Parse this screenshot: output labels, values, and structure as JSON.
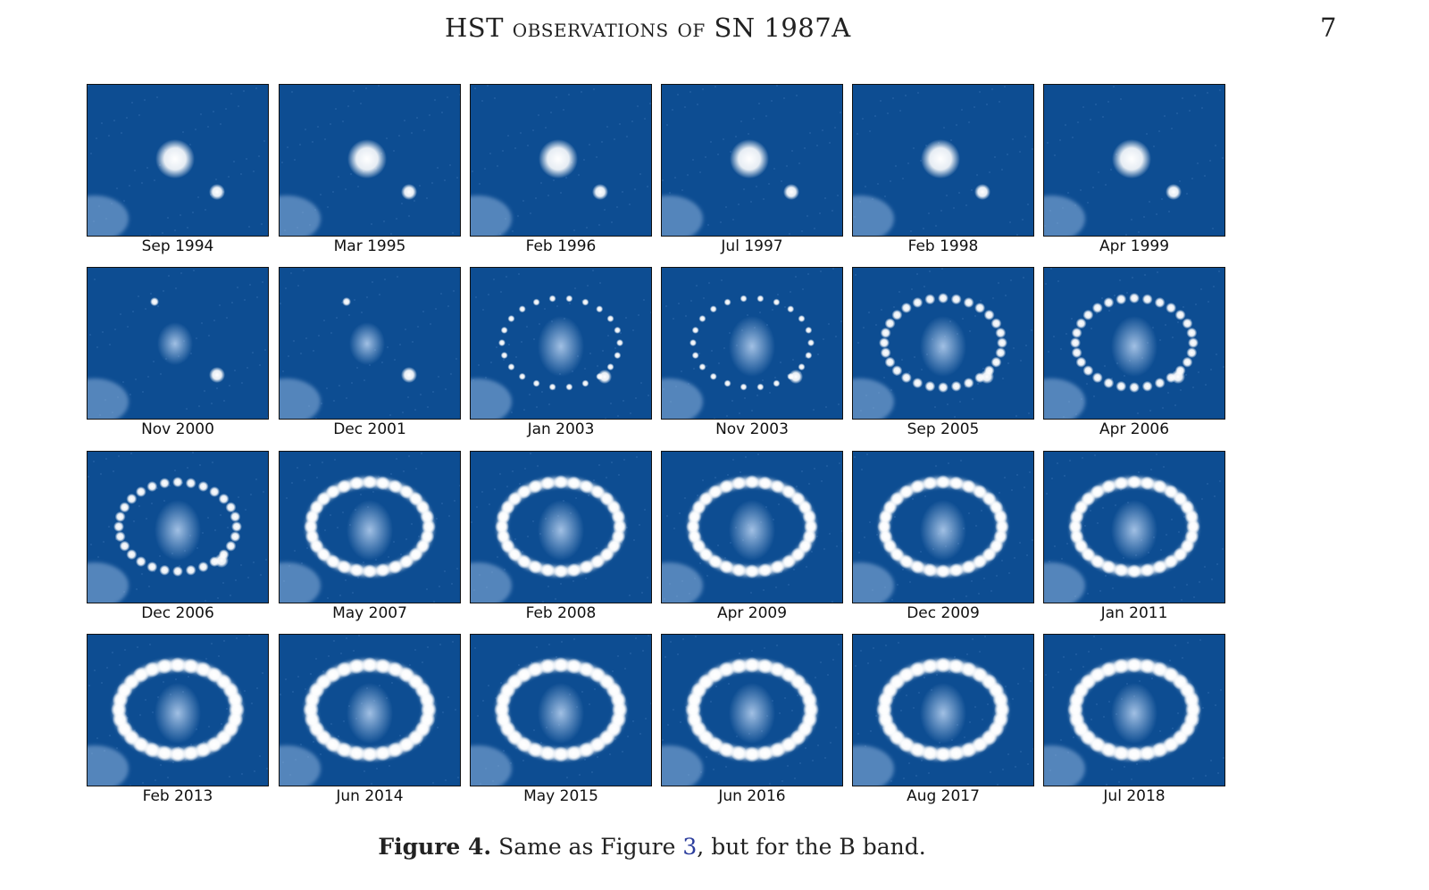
{
  "header": {
    "running_title": "HST observations of SN 1987A",
    "page_number": "7"
  },
  "colors": {
    "image_background": "#0d4d92",
    "image_glow": "#ffffff",
    "reference_link": "#2a3c9c"
  },
  "panels": [
    {
      "label": "Sep 1994",
      "stage": 0
    },
    {
      "label": "Mar 1995",
      "stage": 0
    },
    {
      "label": "Feb 1996",
      "stage": 0
    },
    {
      "label": "Jul 1997",
      "stage": 0
    },
    {
      "label": "Feb 1998",
      "stage": 0
    },
    {
      "label": "Apr 1999",
      "stage": 0
    },
    {
      "label": "Nov 2000",
      "stage": 1
    },
    {
      "label": "Dec 2001",
      "stage": 1
    },
    {
      "label": "Jan 2003",
      "stage": 2
    },
    {
      "label": "Nov 2003",
      "stage": 2
    },
    {
      "label": "Sep 2005",
      "stage": 3
    },
    {
      "label": "Apr 2006",
      "stage": 3
    },
    {
      "label": "Dec 2006",
      "stage": 3
    },
    {
      "label": "May 2007",
      "stage": 4
    },
    {
      "label": "Feb 2008",
      "stage": 4
    },
    {
      "label": "Apr 2009",
      "stage": 4
    },
    {
      "label": "Dec 2009",
      "stage": 4
    },
    {
      "label": "Jan 2011",
      "stage": 4
    },
    {
      "label": "Feb 2013",
      "stage": 5
    },
    {
      "label": "Jun 2014",
      "stage": 5
    },
    {
      "label": "May 2015",
      "stage": 5
    },
    {
      "label": "Jun 2016",
      "stage": 5
    },
    {
      "label": "Aug 2017",
      "stage": 5
    },
    {
      "label": "Jul 2018",
      "stage": 5
    }
  ],
  "caption": {
    "label": "Figure 4.",
    "text_before": "Same as Figure ",
    "ref": "3",
    "text_after": ", but for the B band."
  }
}
